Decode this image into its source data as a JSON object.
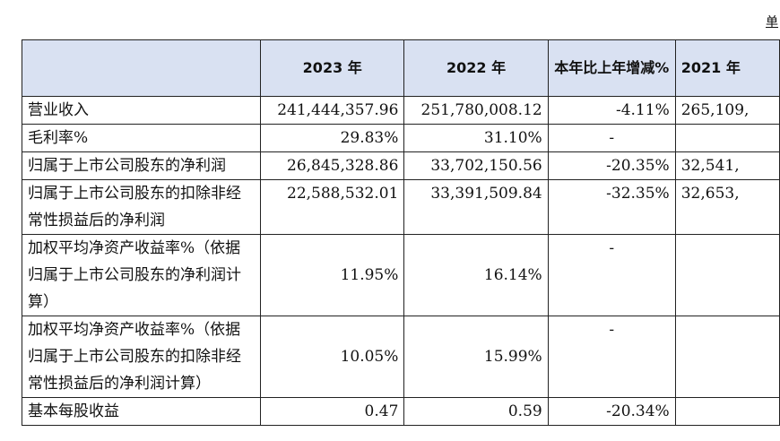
{
  "corner_mark": "单",
  "table": {
    "headers": [
      "",
      "2023 年",
      "2022 年",
      "本年比上年增减%",
      "2021 年"
    ],
    "rows": [
      {
        "label": "营业收入",
        "v2023": "241,444,357.96",
        "v2022": "251,780,008.12",
        "change": "-4.11%",
        "v2021": "265,109,"
      },
      {
        "label": "毛利率%",
        "v2023": "29.83%",
        "v2022": "31.10%",
        "change": "-",
        "v2021": ""
      },
      {
        "label": "归属于上市公司股东的净利润",
        "v2023": "26,845,328.86",
        "v2022": "33,702,150.56",
        "change": "-20.35%",
        "v2021": "32,541,"
      },
      {
        "label": "归属于上市公司股东的扣除非经常性损益后的净利润",
        "v2023": "22,588,532.01",
        "v2022": "33,391,509.84",
        "change": "-32.35%",
        "v2021": "32,653,"
      },
      {
        "label": "加权平均净资产收益率%（依据归属于上市公司股东的净利润计算）",
        "v2023": "11.95%",
        "v2022": "16.14%",
        "change": "-",
        "v2021": ""
      },
      {
        "label": "加权平均净资产收益率%（依据归属于上市公司股东的扣除非经常性损益后的净利润计算）",
        "v2023": "10.05%",
        "v2022": "15.99%",
        "change": "-",
        "v2021": ""
      },
      {
        "label": "基本每股收益",
        "v2023": "0.47",
        "v2022": "0.59",
        "change": "-20.34%",
        "v2021": ""
      }
    ]
  },
  "colors": {
    "header_bg": "#d9e1f2",
    "border": "#222222"
  }
}
